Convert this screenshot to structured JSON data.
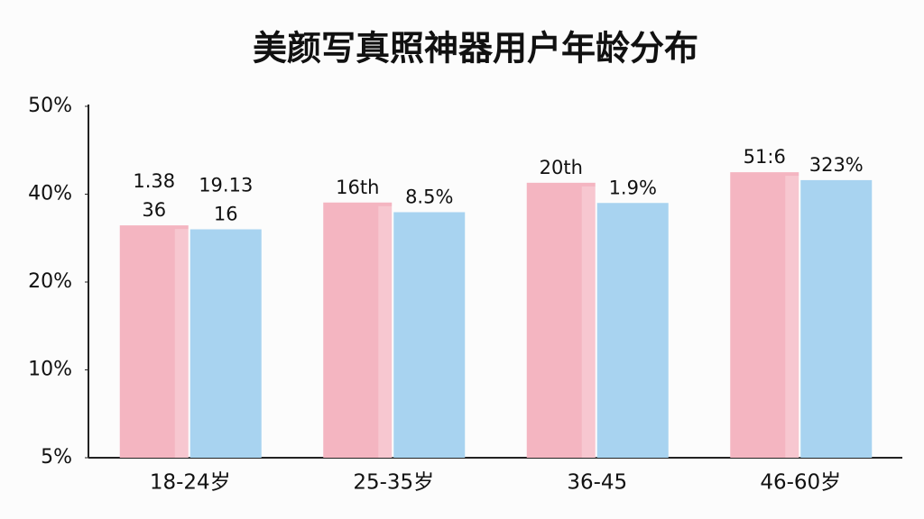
{
  "chart_data": {
    "type": "bar",
    "title": "美颜写真照神器用户年龄分布",
    "categories": [
      "18-24岁",
      "25-35岁",
      "36-45",
      "46-60岁"
    ],
    "series": [
      {
        "color": "#f4b5c1",
        "values": [
          32.9,
          38.1,
          41.3,
          42.5
        ],
        "labels": [
          [
            "1.38",
            "36"
          ],
          [
            "16th"
          ],
          [
            "20th"
          ],
          [
            "51:6"
          ]
        ]
      },
      {
        "color": "#a8d3f0",
        "values": [
          32.0,
          35.9,
          38.0,
          41.6
        ],
        "labels": [
          [
            "19.13",
            "16"
          ],
          [
            "8.5%"
          ],
          [
            "1.9%"
          ],
          [
            "323%"
          ]
        ]
      }
    ],
    "ylim": [
      5,
      50
    ],
    "yticks": [
      {
        "value": 5,
        "label": "5%"
      },
      {
        "value": 10,
        "label": "10%"
      },
      {
        "value": 20,
        "label": "20%"
      },
      {
        "value": 40,
        "label": "40%"
      },
      {
        "value": 50,
        "label": "50%"
      }
    ],
    "grid": false
  }
}
